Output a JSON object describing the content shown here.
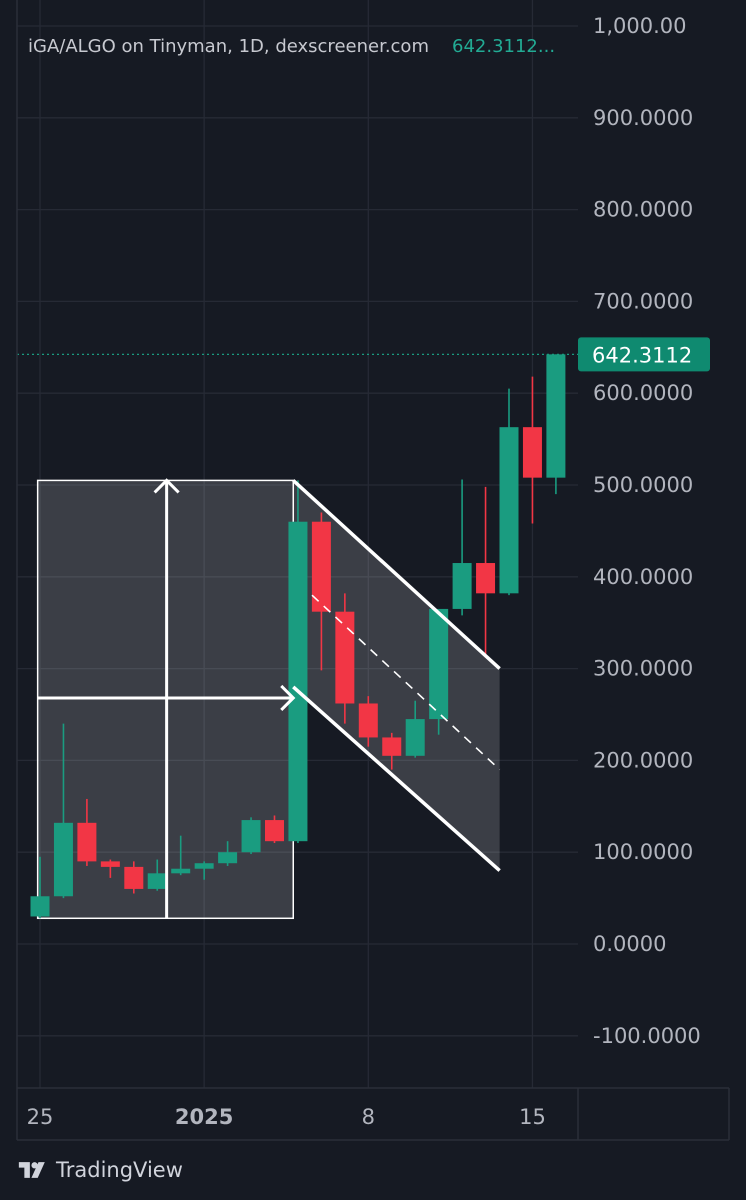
{
  "header": {
    "title": "iGA/ALGO on Tinyman, 1D, dexscreener.com",
    "last_price_text": "642.3112..."
  },
  "footer": {
    "brand": "TradingView",
    "logo_icon": "tradingview-logo-icon"
  },
  "colors": {
    "up": "#1a9c80",
    "down": "#f23645",
    "badge": "#0f8a70",
    "grid": "#262a35",
    "drawing": "#ffffff",
    "axis_text": "#b2b5be"
  },
  "chart_data": {
    "type": "candlestick",
    "pair": "iGA/ALGO",
    "exchange": "Tinyman",
    "interval": "1D",
    "source": "dexscreener.com",
    "last_price": 642.3112,
    "last_price_label": "642.3112",
    "y_axis": {
      "ticks": [
        1000,
        900,
        800,
        700,
        600,
        500,
        400,
        300,
        200,
        100,
        0,
        -100
      ],
      "tick_labels": [
        "1,000.00",
        "900.0000",
        "800.0000",
        "700.0000",
        "600.0000",
        "500.0000",
        "400.0000",
        "300.0000",
        "200.0000",
        "100.0000",
        "0.0000",
        "-100.0000"
      ]
    },
    "x_axis": {
      "tick_labels": [
        {
          "label": "25",
          "index": 0,
          "bold": false
        },
        {
          "label": "2025",
          "index": 7,
          "bold": true
        },
        {
          "label": "8",
          "index": 14,
          "bold": false
        },
        {
          "label": "15",
          "index": 21,
          "bold": false
        }
      ]
    },
    "ylim": [
      -160,
      1010
    ],
    "candles": [
      {
        "i": 0,
        "o": 30,
        "h": 95,
        "l": 28,
        "c": 52
      },
      {
        "i": 1,
        "o": 52,
        "h": 240,
        "l": 50,
        "c": 132
      },
      {
        "i": 2,
        "o": 132,
        "h": 158,
        "l": 85,
        "c": 90
      },
      {
        "i": 3,
        "o": 90,
        "h": 92,
        "l": 72,
        "c": 84
      },
      {
        "i": 4,
        "o": 84,
        "h": 90,
        "l": 55,
        "c": 60
      },
      {
        "i": 5,
        "o": 60,
        "h": 92,
        "l": 58,
        "c": 77
      },
      {
        "i": 6,
        "o": 77,
        "h": 118,
        "l": 75,
        "c": 82
      },
      {
        "i": 7,
        "o": 82,
        "h": 90,
        "l": 70,
        "c": 88
      },
      {
        "i": 8,
        "o": 88,
        "h": 112,
        "l": 85,
        "c": 100
      },
      {
        "i": 9,
        "o": 100,
        "h": 138,
        "l": 98,
        "c": 135
      },
      {
        "i": 10,
        "o": 135,
        "h": 140,
        "l": 110,
        "c": 112
      },
      {
        "i": 11,
        "o": 112,
        "h": 505,
        "l": 110,
        "c": 460
      },
      {
        "i": 12,
        "o": 460,
        "h": 470,
        "l": 298,
        "c": 362
      },
      {
        "i": 13,
        "o": 362,
        "h": 382,
        "l": 240,
        "c": 262
      },
      {
        "i": 14,
        "o": 262,
        "h": 270,
        "l": 215,
        "c": 225
      },
      {
        "i": 15,
        "o": 225,
        "h": 230,
        "l": 190,
        "c": 205
      },
      {
        "i": 16,
        "o": 205,
        "h": 265,
        "l": 203,
        "c": 245
      },
      {
        "i": 17,
        "o": 245,
        "h": 365,
        "l": 228,
        "c": 365
      },
      {
        "i": 18,
        "o": 365,
        "h": 506,
        "l": 358,
        "c": 415
      },
      {
        "i": 19,
        "o": 415,
        "h": 498,
        "l": 312,
        "c": 382
      },
      {
        "i": 20,
        "o": 382,
        "h": 605,
        "l": 380,
        "c": 563
      },
      {
        "i": 21,
        "o": 563,
        "h": 618,
        "l": 458,
        "c": 508
      },
      {
        "i": 22,
        "o": 508,
        "h": 642.3112,
        "l": 490,
        "c": 642.3112
      }
    ],
    "drawings": {
      "measure_rect": {
        "i0": -0.1,
        "i1": 10.8,
        "p0": 28,
        "p1": 505
      },
      "measure_hline": {
        "i0": -0.1,
        "i1": 10.8,
        "p": 268
      },
      "measure_vline": {
        "i": 5.4,
        "p0": 28,
        "p1": 505
      },
      "flag_channel": {
        "upper": {
          "i0": 10.8,
          "p0": 505,
          "i1": 19.6,
          "p1": 300
        },
        "lower": {
          "i0": 10.8,
          "p0": 280,
          "i1": 19.6,
          "p1": 80
        },
        "mid": {
          "i0": 11.6,
          "p0": 380,
          "i1": 19.6,
          "p1": 190
        }
      }
    }
  }
}
